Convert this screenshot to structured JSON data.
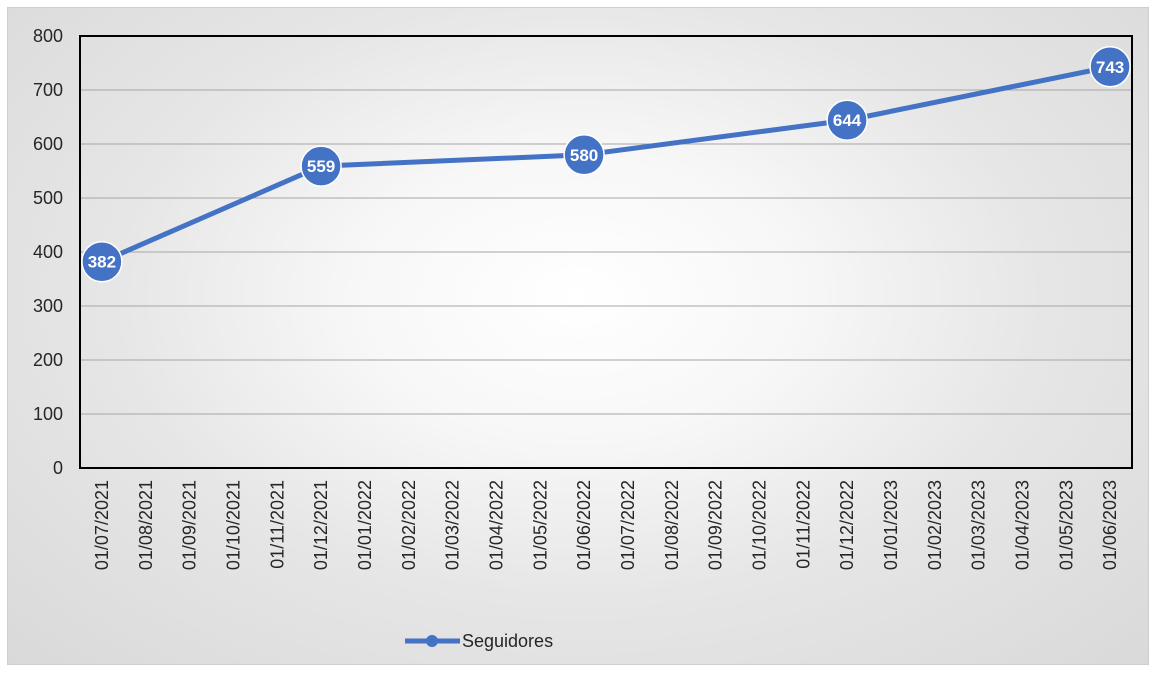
{
  "chart_data": {
    "type": "line",
    "title": "",
    "xlabel": "",
    "ylabel": "",
    "x": [
      "01/07/2021",
      "01/08/2021",
      "01/09/2021",
      "01/10/2021",
      "01/11/2021",
      "01/12/2021",
      "01/01/2022",
      "01/02/2022",
      "01/03/2022",
      "01/04/2022",
      "01/05/2022",
      "01/06/2022",
      "01/07/2022",
      "01/08/2022",
      "01/09/2022",
      "01/10/2022",
      "01/11/2022",
      "01/12/2022",
      "01/01/2023",
      "01/02/2023",
      "01/03/2023",
      "01/04/2023",
      "01/05/2023",
      "01/06/2023"
    ],
    "series": [
      {
        "name": "Seguidores",
        "color": "#4472c4",
        "points": [
          {
            "x": "01/07/2021",
            "y": 382
          },
          {
            "x": "01/12/2021",
            "y": 559
          },
          {
            "x": "01/06/2022",
            "y": 580
          },
          {
            "x": "01/12/2022",
            "y": 644
          },
          {
            "x": "01/06/2023",
            "y": 743
          }
        ]
      }
    ],
    "ylim": [
      0,
      800
    ],
    "yticks": [
      0,
      100,
      200,
      300,
      400,
      500,
      600,
      700,
      800
    ],
    "grid": true,
    "legend": "bottom",
    "data_labels": true
  }
}
